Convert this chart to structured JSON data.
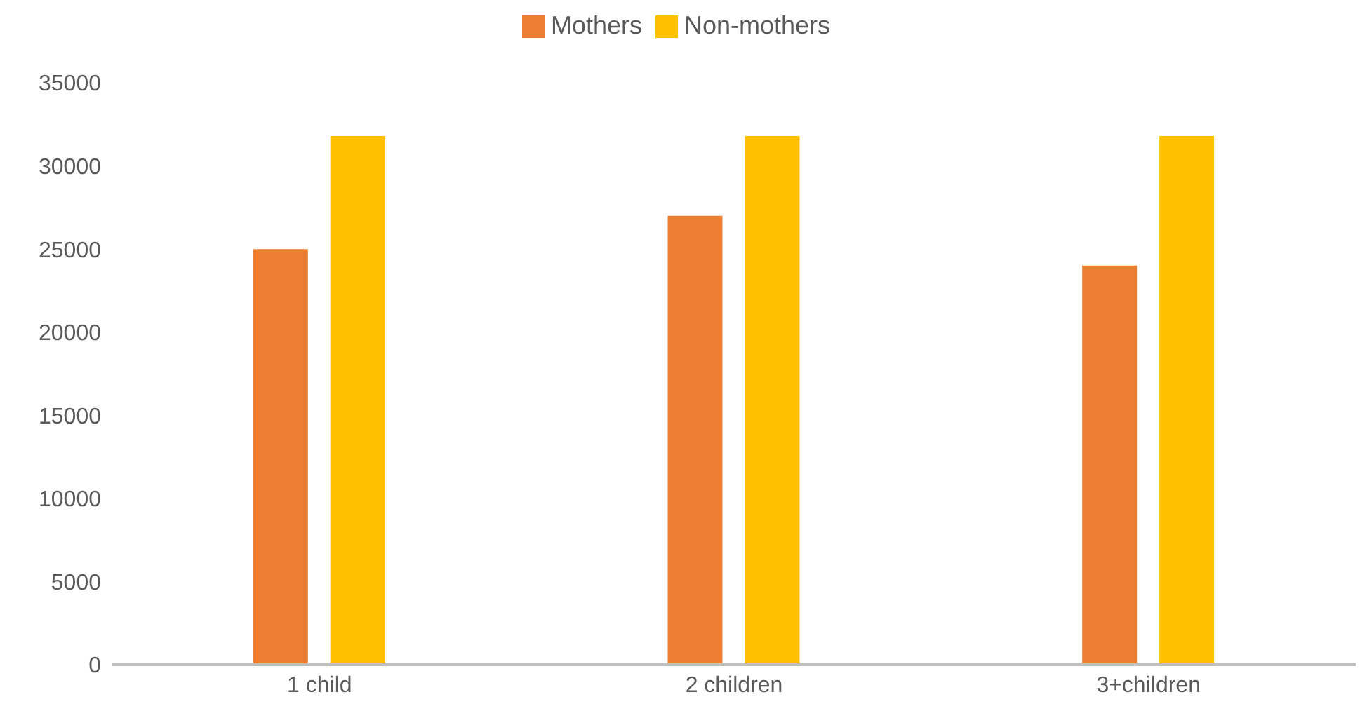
{
  "chart_data": {
    "type": "bar",
    "categories": [
      "1 child",
      "2 children",
      "3+children"
    ],
    "series": [
      {
        "name": "Mothers",
        "color": "#ed7d31",
        "values": [
          25000,
          27000,
          24000
        ]
      },
      {
        "name": "Non-mothers",
        "color": "#ffc000",
        "values": [
          31800,
          31800,
          31800
        ]
      }
    ],
    "ylim": [
      0,
      35000
    ],
    "yticks": [
      0,
      5000,
      10000,
      15000,
      20000,
      25000,
      30000,
      35000
    ],
    "grid": false,
    "legend": "top"
  }
}
